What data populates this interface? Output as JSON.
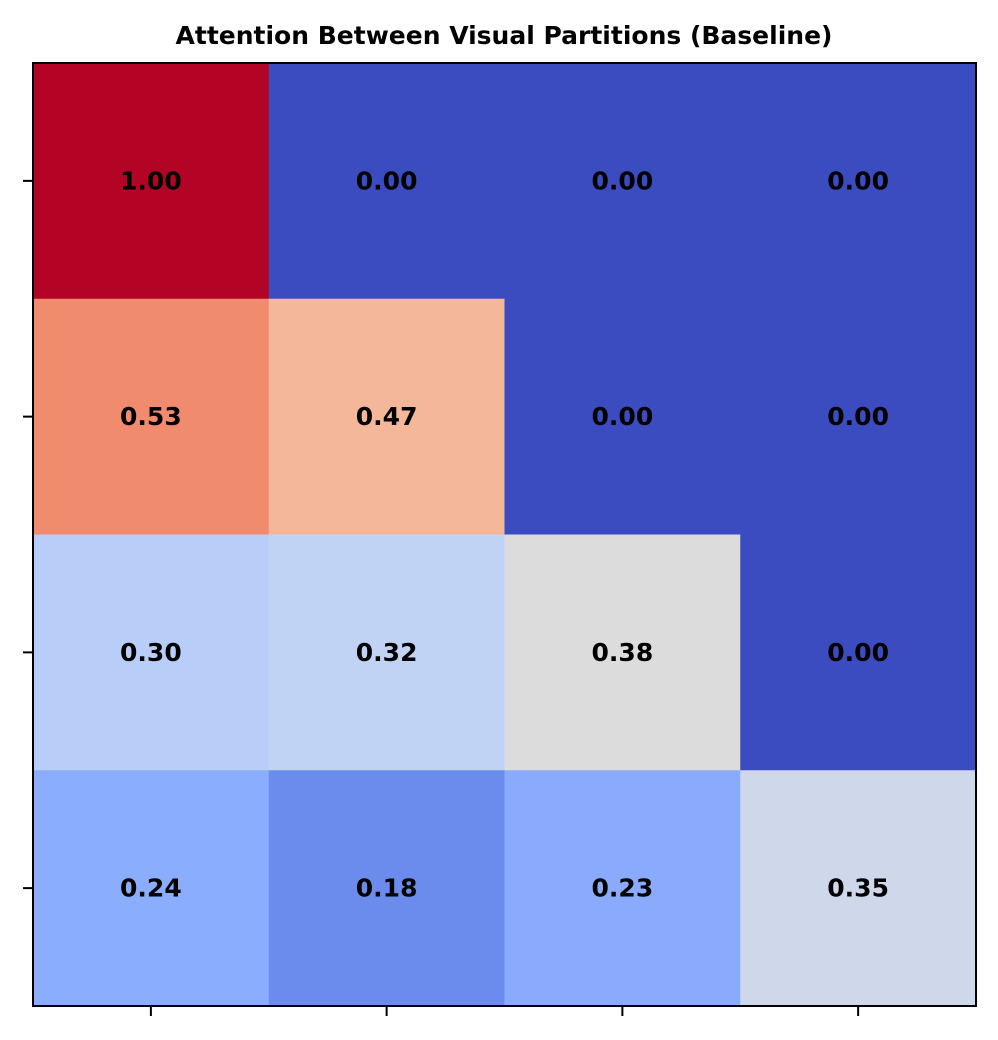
{
  "chart_data": {
    "type": "heatmap",
    "title": "Attention Between Visual Partitions (Baseline)",
    "rows": 4,
    "cols": 4,
    "colormap": "coolwarm",
    "value_range": [
      0.0,
      1.0
    ],
    "values": [
      [
        1.0,
        0.0,
        0.0,
        0.0
      ],
      [
        0.53,
        0.47,
        0.0,
        0.0
      ],
      [
        0.3,
        0.32,
        0.38,
        0.0
      ],
      [
        0.24,
        0.18,
        0.23,
        0.35
      ]
    ],
    "labels": [
      [
        "1.00",
        "0.00",
        "0.00",
        "0.00"
      ],
      [
        "0.53",
        "0.47",
        "0.00",
        "0.00"
      ],
      [
        "0.30",
        "0.32",
        "0.38",
        "0.00"
      ],
      [
        "0.24",
        "0.18",
        "0.23",
        "0.35"
      ]
    ],
    "cell_colors": [
      [
        "#b40426",
        "#3b4cc0",
        "#3b4cc0",
        "#3b4cc0"
      ],
      [
        "#f08b6e",
        "#f5b79a",
        "#3b4cc0",
        "#3b4cc0"
      ],
      [
        "#b8cef9",
        "#c1d3f5",
        "#dcdcdc",
        "#3b4cc0"
      ],
      [
        "#8badfd",
        "#6c8ced",
        "#8aabfd",
        "#cfd8ea"
      ]
    ],
    "xtick_labels": [
      "",
      "",
      "",
      ""
    ],
    "ytick_labels": [
      "",
      "",
      "",
      ""
    ],
    "xlabel": "",
    "ylabel": ""
  }
}
